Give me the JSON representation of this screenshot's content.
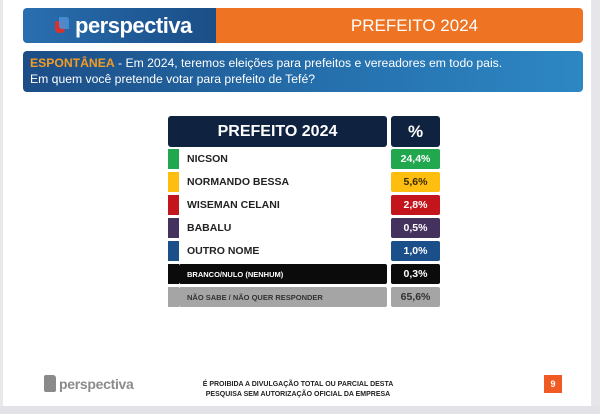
{
  "header": {
    "logo_text": "perspectiva",
    "title": "PREFEITO 2024"
  },
  "question": {
    "tag": "ESPONTÂNEA",
    "line1_rest": " - Em 2024, teremos eleições para prefeitos e vereadores em todo pais.",
    "line2": "Em quem você pretende votar para prefeito de Tefé?"
  },
  "table": {
    "header_name": "PREFEITO 2024",
    "header_pct": "%",
    "rows": [
      {
        "name": "NICSON",
        "pct": "24,4%",
        "color": "#21a84f",
        "pct_text": "#ffffff"
      },
      {
        "name": "NORMANDO BESSA",
        "pct": "5,6%",
        "color": "#fdbe10",
        "pct_text": "#3a2a00"
      },
      {
        "name": "WISEMAN CELANI",
        "pct": "2,8%",
        "color": "#c4151c",
        "pct_text": "#ffffff"
      },
      {
        "name": "BABALU",
        "pct": "0,5%",
        "color": "#44325e",
        "pct_text": "#ffffff"
      },
      {
        "name": "OUTRO NOME",
        "pct": "1,0%",
        "color": "#1b4f8a",
        "pct_text": "#ffffff"
      },
      {
        "name": "BRANCO/NULO (NENHUM)",
        "pct": "0,3%",
        "color": "#0b0b0b",
        "pct_text": "#ffffff"
      },
      {
        "name": "NÃO SABE / NÃO QUER RESPONDER",
        "pct": "65,6%",
        "color": "#a5a5a5",
        "pct_text": "#333333"
      }
    ]
  },
  "chart_data": {
    "type": "table",
    "title": "PREFEITO 2024",
    "subtitle": "ESPONTÂNEA - Em 2024, teremos eleições para prefeitos e vereadores em todo pais. Em quem você pretende votar para prefeito de Tefé?",
    "categories": [
      "NICSON",
      "NORMANDO BESSA",
      "WISEMAN CELANI",
      "BABALU",
      "OUTRO NOME",
      "BRANCO/NULO (NENHUM)",
      "NÃO SABE / NÃO QUER RESPONDER"
    ],
    "values": [
      24.4,
      5.6,
      2.8,
      0.5,
      1.0,
      0.3,
      65.6
    ],
    "colors": [
      "#21a84f",
      "#fdbe10",
      "#c4151c",
      "#44325e",
      "#1b4f8a",
      "#0b0b0b",
      "#a5a5a5"
    ],
    "xlabel": "PREFEITO 2024",
    "ylabel": "%"
  },
  "footer": {
    "logo_text": "perspectiva",
    "note_line1": "É PROIBIDA A DIVULGAÇÃO TOTAL OU PARCIAL DESTA",
    "note_line2": "PESQUISA SEM AUTORIZAÇÃO OFICIAL DA EMPRESA",
    "page": "9"
  }
}
